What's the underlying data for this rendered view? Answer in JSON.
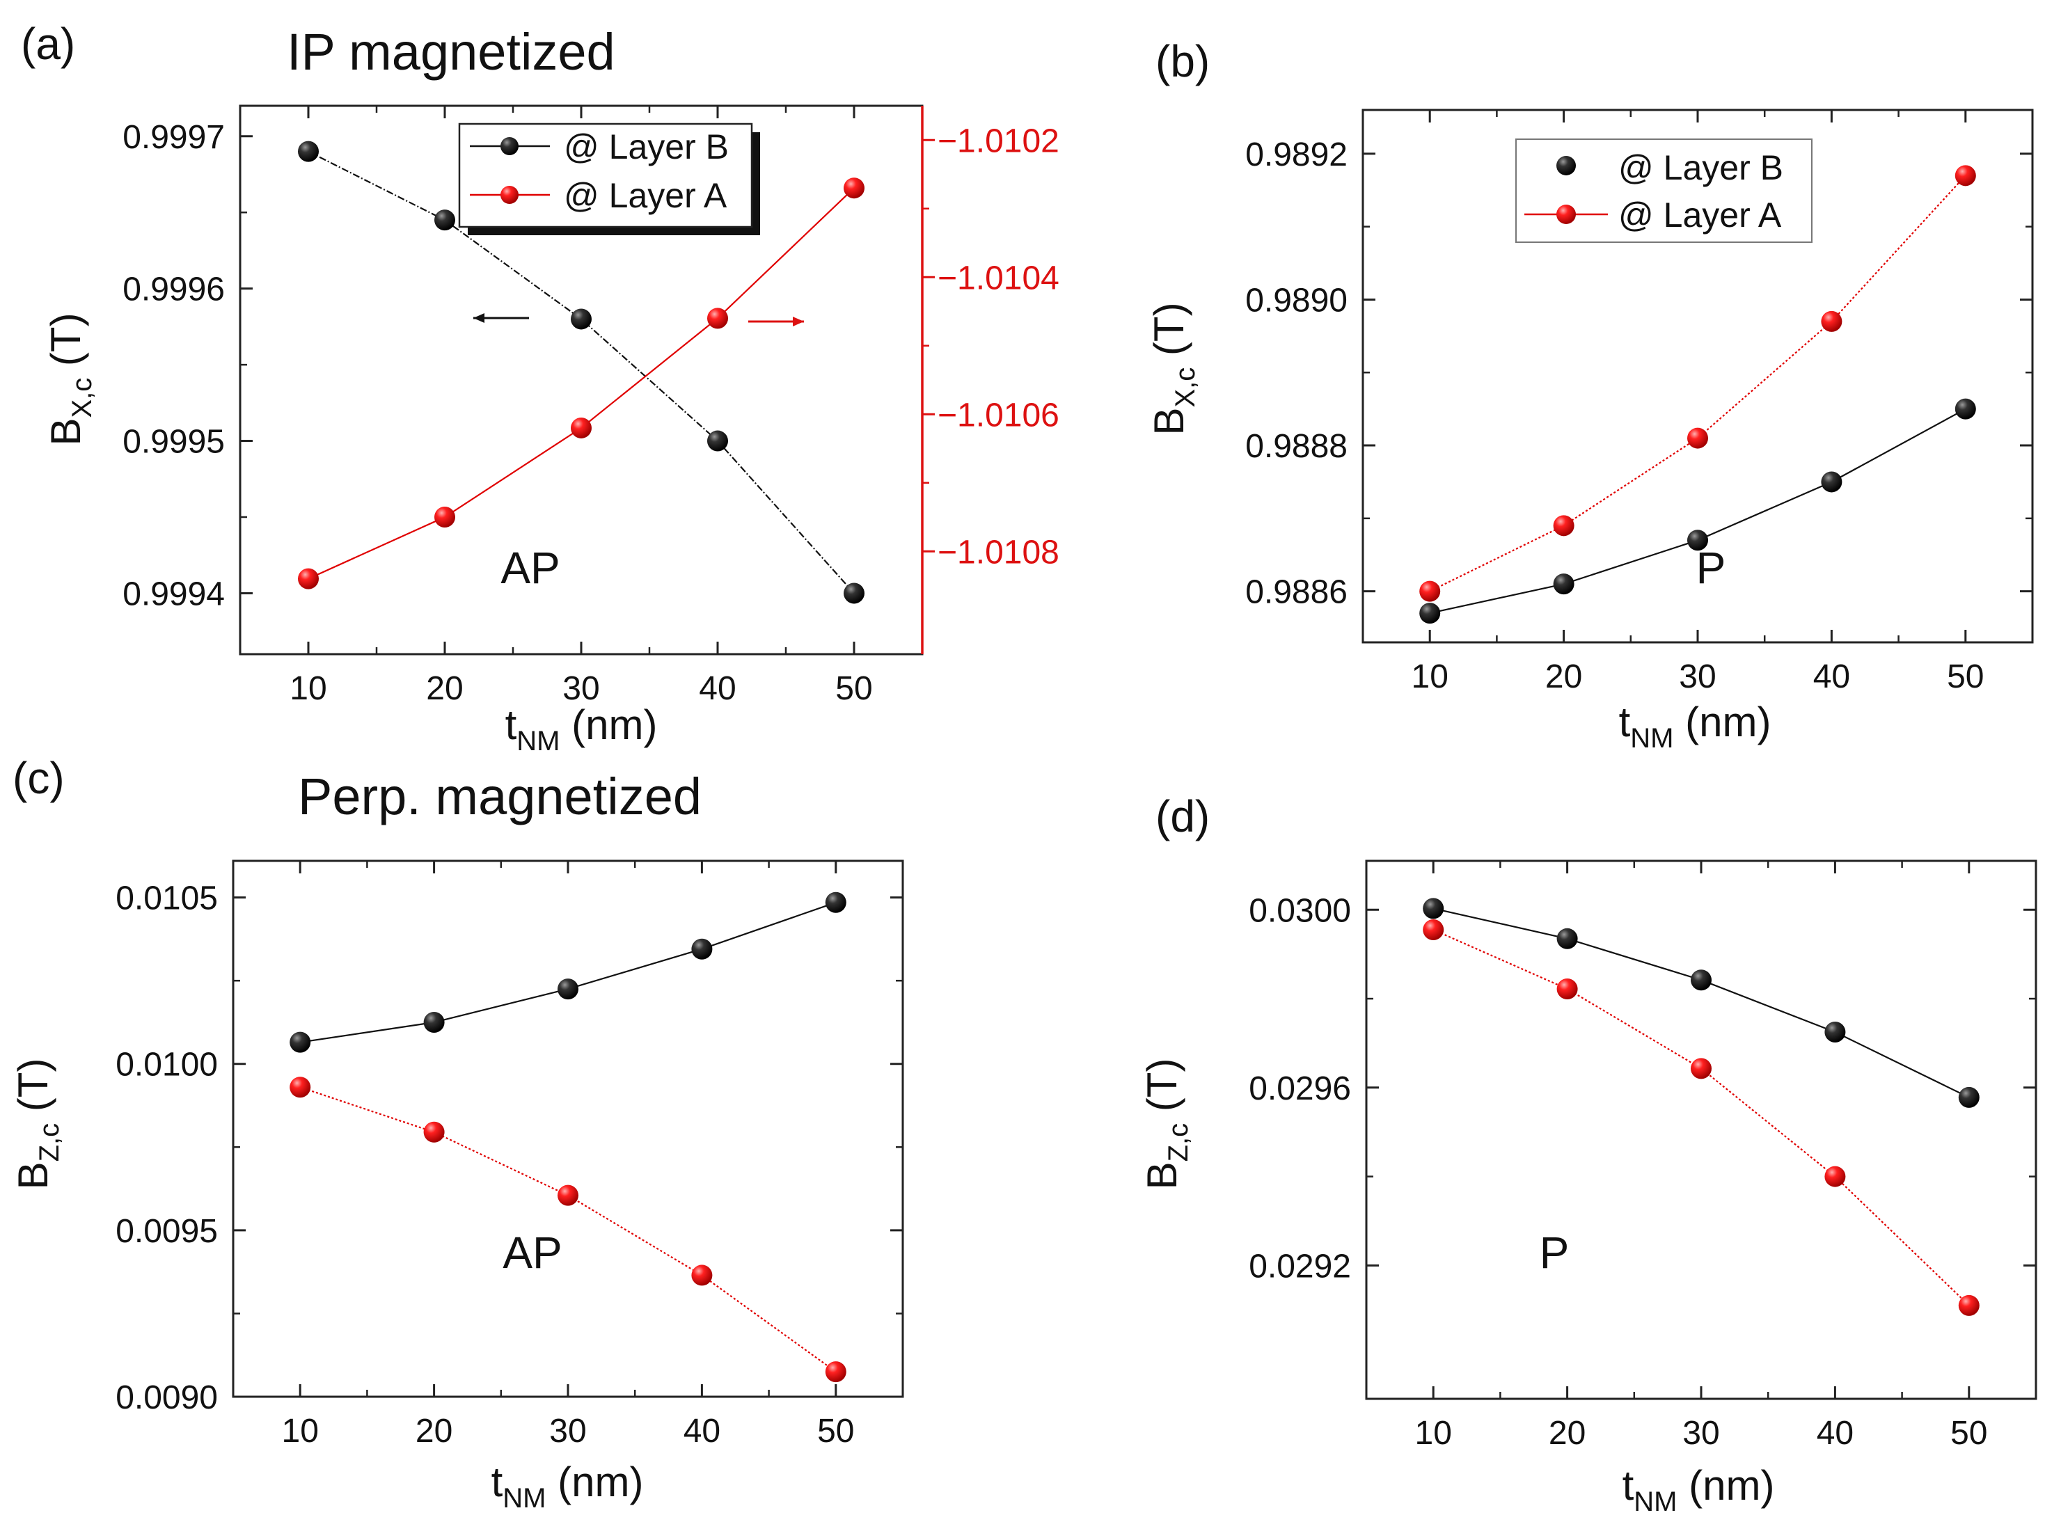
{
  "figure": {
    "panels": [
      "a",
      "b",
      "c",
      "d"
    ]
  },
  "colors": {
    "black_series": "#111111",
    "red_series": "#e00000",
    "axis": "#222222",
    "right_axis": "#dd1111"
  },
  "chart_data": [
    {
      "id": "a",
      "type": "line",
      "panel_label": "(a)",
      "title": "IP magnetized",
      "x": [
        10,
        20,
        30,
        40,
        50
      ],
      "xlim": [
        5,
        55
      ],
      "xticks": [
        10,
        20,
        30,
        40,
        50
      ],
      "xlabel": {
        "main": "t",
        "sub": "NM",
        "rest": " (nm)"
      },
      "ylabel": {
        "main": "B",
        "sub": "X,c",
        "rest": " (T)"
      },
      "ylim": [
        0.99936,
        0.99972
      ],
      "yticks": [
        0.9994,
        0.9995,
        0.9996,
        0.9997
      ],
      "ytick_labels": [
        "0.9994",
        "0.9995",
        "0.9996",
        "0.9997"
      ],
      "y2lim": [
        -1.01095,
        -1.01015
      ],
      "y2ticks": [
        -1.0108,
        -1.0106,
        -1.0104,
        -1.0102
      ],
      "y2tick_labels": [
        "−1.0108",
        "−1.0106",
        "−1.0104",
        "−1.0102"
      ],
      "annotation": "AP",
      "legend_position": "top-center",
      "series": [
        {
          "name": "@ Layer B",
          "color": "#111111",
          "axis": "left",
          "values": [
            0.99969,
            0.999645,
            0.99958,
            0.9995,
            0.9994
          ]
        },
        {
          "name": "@ Layer A",
          "color": "#e00000",
          "axis": "right",
          "values": [
            -1.01084,
            -1.01075,
            -1.01062,
            -1.01046,
            -1.01027
          ]
        }
      ]
    },
    {
      "id": "b",
      "type": "line",
      "panel_label": "(b)",
      "title": "",
      "x": [
        10,
        20,
        30,
        40,
        50
      ],
      "xlim": [
        5,
        55
      ],
      "xticks": [
        10,
        20,
        30,
        40,
        50
      ],
      "xlabel": {
        "main": "t",
        "sub": "NM",
        "rest": " (nm)"
      },
      "ylabel": {
        "main": "B",
        "sub": "X,c",
        "rest": " (T)"
      },
      "ylim": [
        0.98853,
        0.98926
      ],
      "yticks": [
        0.9886,
        0.9888,
        0.989,
        0.9892
      ],
      "ytick_labels": [
        "0.9886",
        "0.9888",
        "0.9890",
        "0.9892"
      ],
      "annotation": "P",
      "legend_position": "top-center",
      "series": [
        {
          "name": "@ Layer B",
          "color": "#111111",
          "axis": "left",
          "values": [
            0.98857,
            0.98861,
            0.98867,
            0.98875,
            0.98885
          ]
        },
        {
          "name": "@ Layer A",
          "color": "#e00000",
          "axis": "left",
          "values": [
            0.9886,
            0.98869,
            0.98881,
            0.98897,
            0.98917
          ]
        }
      ]
    },
    {
      "id": "c",
      "type": "line",
      "panel_label": "(c)",
      "title": "Perp. magnetized",
      "x": [
        10,
        20,
        30,
        40,
        50
      ],
      "xlim": [
        5,
        55
      ],
      "xticks": [
        10,
        20,
        30,
        40,
        50
      ],
      "xlabel": {
        "main": "t",
        "sub": "NM",
        "rest": " (nm)"
      },
      "ylabel": {
        "main": "B",
        "sub": "Z,c",
        "rest": " (T)"
      },
      "ylim": [
        0.009,
        0.01061
      ],
      "yticks": [
        0.009,
        0.0095,
        0.01,
        0.0105
      ],
      "ytick_labels": [
        "0.0090",
        "0.0095",
        "0.0100",
        "0.0105"
      ],
      "annotation": "AP",
      "legend_position": "none",
      "series": [
        {
          "name": "@ Layer B",
          "color": "#111111",
          "axis": "left",
          "values": [
            0.010065,
            0.010125,
            0.010225,
            0.010345,
            0.010485
          ]
        },
        {
          "name": "@ Layer A",
          "color": "#e00000",
          "axis": "left",
          "values": [
            0.00993,
            0.009795,
            0.009605,
            0.009365,
            0.009075
          ]
        }
      ]
    },
    {
      "id": "d",
      "type": "line",
      "panel_label": "(d)",
      "title": "",
      "x": [
        10,
        20,
        30,
        40,
        50
      ],
      "xlim": [
        5,
        55
      ],
      "xticks": [
        10,
        20,
        30,
        40,
        50
      ],
      "xlabel": {
        "main": "t",
        "sub": "NM",
        "rest": " (nm)"
      },
      "ylabel": {
        "main": "B",
        "sub": "Z,c",
        "rest": " (T)"
      },
      "ylim": [
        0.0289,
        0.03011
      ],
      "yticks": [
        0.0292,
        0.0296,
        0.03
      ],
      "ytick_labels": [
        "0.0292",
        "0.0296",
        "0.0300"
      ],
      "annotation": "P",
      "legend_position": "none",
      "series": [
        {
          "name": "@ Layer B",
          "color": "#111111",
          "axis": "left",
          "values": [
            0.030003,
            0.029935,
            0.029842,
            0.029725,
            0.029578
          ]
        },
        {
          "name": "@ Layer A",
          "color": "#e00000",
          "axis": "left",
          "values": [
            0.029955,
            0.029822,
            0.029643,
            0.0294,
            0.02911
          ]
        }
      ]
    }
  ]
}
